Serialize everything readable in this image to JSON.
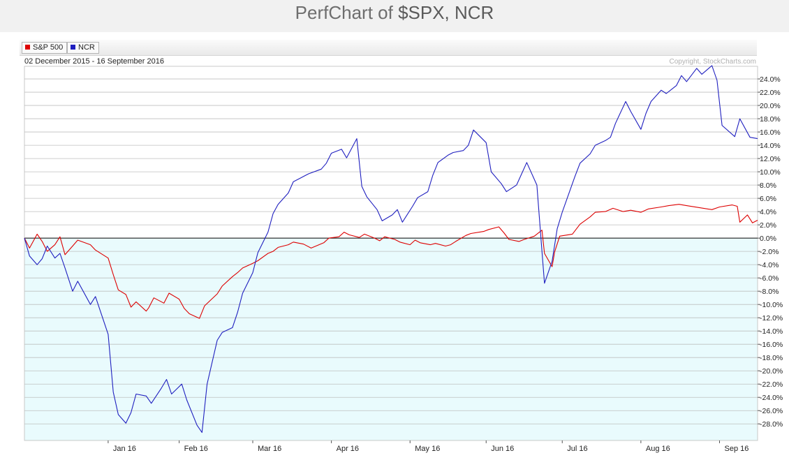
{
  "page": {
    "title_prefix": "PerfChart of ",
    "title_symbols": "$SPX, NCR"
  },
  "colors": {
    "spx": "#dd0000",
    "ncr": "#1f1fbf",
    "negative_fill": "#e9fbfd",
    "grid": "#bfbfbf"
  },
  "chart_data": {
    "type": "line",
    "date_range": "02 December 2015 - 16 September 2016",
    "copyright": "Copyright, StockCharts.com",
    "ylabel": "",
    "y_unit": "%",
    "ylim": [
      -30.5,
      25.9
    ],
    "y_ticks": [
      "24.0%",
      "22.0%",
      "20.0%",
      "18.0%",
      "16.0%",
      "14.0%",
      "12.0%",
      "10.0%",
      "8.0%",
      "6.0%",
      "4.0%",
      "2.0%",
      "0.0%",
      "-2.0%",
      "-4.0%",
      "-6.0%",
      "-8.0%",
      "-10.0%",
      "-12.0%",
      "-14.0%",
      "-16.0%",
      "-18.0%",
      "-20.0%",
      "-22.0%",
      "-24.0%",
      "-26.0%",
      "-28.0%"
    ],
    "x_ticks": [
      {
        "label": "Jan 16",
        "date": "2016-01-04"
      },
      {
        "label": "Feb 16",
        "date": "2016-02-01"
      },
      {
        "label": "Mar 16",
        "date": "2016-03-01"
      },
      {
        "label": "Apr 16",
        "date": "2016-04-01"
      },
      {
        "label": "May 16",
        "date": "2016-05-02"
      },
      {
        "label": "Jun 16",
        "date": "2016-06-01"
      },
      {
        "label": "Jul 16",
        "date": "2016-07-01"
      },
      {
        "label": "Aug 16",
        "date": "2016-08-01"
      },
      {
        "label": "Sep 16",
        "date": "2016-09-01"
      }
    ],
    "legend_position": "top-left",
    "grid": true,
    "series": [
      {
        "name": "S&P 500",
        "color": "#dd0000",
        "x": [
          "2015-12-02",
          "2015-12-04",
          "2015-12-07",
          "2015-12-09",
          "2015-12-11",
          "2015-12-14",
          "2015-12-16",
          "2015-12-18",
          "2015-12-21",
          "2015-12-23",
          "2015-12-28",
          "2015-12-30",
          "2016-01-04",
          "2016-01-06",
          "2016-01-08",
          "2016-01-11",
          "2016-01-13",
          "2016-01-15",
          "2016-01-19",
          "2016-01-20",
          "2016-01-22",
          "2016-01-26",
          "2016-01-28",
          "2016-02-01",
          "2016-02-03",
          "2016-02-05",
          "2016-02-09",
          "2016-02-11",
          "2016-02-16",
          "2016-02-18",
          "2016-02-22",
          "2016-02-24",
          "2016-02-26",
          "2016-03-01",
          "2016-03-03",
          "2016-03-07",
          "2016-03-09",
          "2016-03-11",
          "2016-03-15",
          "2016-03-17",
          "2016-03-21",
          "2016-03-24",
          "2016-03-29",
          "2016-03-31",
          "2016-04-04",
          "2016-04-06",
          "2016-04-08",
          "2016-04-12",
          "2016-04-14",
          "2016-04-18",
          "2016-04-20",
          "2016-04-22",
          "2016-04-26",
          "2016-04-28",
          "2016-05-02",
          "2016-05-04",
          "2016-05-06",
          "2016-05-10",
          "2016-05-12",
          "2016-05-16",
          "2016-05-18",
          "2016-05-20",
          "2016-05-24",
          "2016-05-26",
          "2016-05-31",
          "2016-06-02",
          "2016-06-06",
          "2016-06-08",
          "2016-06-10",
          "2016-06-14",
          "2016-06-16",
          "2016-06-20",
          "2016-06-23",
          "2016-06-24",
          "2016-06-27",
          "2016-06-28",
          "2016-06-30",
          "2016-07-05",
          "2016-07-08",
          "2016-07-12",
          "2016-07-14",
          "2016-07-18",
          "2016-07-21",
          "2016-07-25",
          "2016-07-28",
          "2016-08-01",
          "2016-08-04",
          "2016-08-09",
          "2016-08-12",
          "2016-08-16",
          "2016-08-19",
          "2016-08-24",
          "2016-08-29",
          "2016-09-01",
          "2016-09-06",
          "2016-09-08",
          "2016-09-09",
          "2016-09-12",
          "2016-09-14",
          "2016-09-16"
        ],
        "values": [
          0.0,
          -1.5,
          0.6,
          -0.5,
          -2.0,
          -1.0,
          0.2,
          -2.5,
          -1.2,
          -0.3,
          -1.0,
          -1.8,
          -3.0,
          -5.5,
          -7.8,
          -8.5,
          -10.4,
          -9.6,
          -11.0,
          -10.5,
          -9.0,
          -9.8,
          -8.3,
          -9.2,
          -10.6,
          -11.4,
          -12.1,
          -10.2,
          -8.4,
          -7.2,
          -5.8,
          -5.2,
          -4.5,
          -3.8,
          -3.4,
          -2.3,
          -2.0,
          -1.4,
          -1.0,
          -0.6,
          -0.9,
          -1.5,
          -0.7,
          0.0,
          0.2,
          0.9,
          0.5,
          0.1,
          0.6,
          0.0,
          -0.4,
          0.2,
          -0.2,
          -0.6,
          -1.0,
          -0.3,
          -0.7,
          -1.0,
          -0.8,
          -1.2,
          -1.0,
          -0.5,
          0.4,
          0.7,
          1.0,
          1.3,
          1.7,
          0.8,
          -0.2,
          -0.5,
          -0.2,
          0.3,
          1.2,
          -2.3,
          -4.3,
          -2.1,
          0.3,
          0.6,
          2.1,
          3.2,
          3.9,
          4.0,
          4.5,
          4.0,
          4.2,
          3.9,
          4.4,
          4.7,
          4.9,
          5.1,
          4.9,
          4.6,
          4.3,
          4.7,
          5.0,
          4.8,
          2.4,
          3.5,
          2.3,
          2.7
        ]
      },
      {
        "name": "NCR",
        "color": "#1f1fbf",
        "x": [
          "2015-12-02",
          "2015-12-04",
          "2015-12-07",
          "2015-12-09",
          "2015-12-11",
          "2015-12-14",
          "2015-12-16",
          "2015-12-18",
          "2015-12-21",
          "2015-12-23",
          "2015-12-28",
          "2015-12-30",
          "2016-01-04",
          "2016-01-06",
          "2016-01-08",
          "2016-01-11",
          "2016-01-13",
          "2016-01-15",
          "2016-01-19",
          "2016-01-21",
          "2016-01-25",
          "2016-01-27",
          "2016-01-29",
          "2016-02-02",
          "2016-02-04",
          "2016-02-08",
          "2016-02-10",
          "2016-02-12",
          "2016-02-16",
          "2016-02-18",
          "2016-02-22",
          "2016-02-24",
          "2016-02-26",
          "2016-03-01",
          "2016-03-03",
          "2016-03-07",
          "2016-03-09",
          "2016-03-11",
          "2016-03-15",
          "2016-03-17",
          "2016-03-21",
          "2016-03-23",
          "2016-03-28",
          "2016-03-30",
          "2016-04-01",
          "2016-04-05",
          "2016-04-07",
          "2016-04-11",
          "2016-04-13",
          "2016-04-15",
          "2016-04-19",
          "2016-04-21",
          "2016-04-25",
          "2016-04-27",
          "2016-04-29",
          "2016-05-03",
          "2016-05-05",
          "2016-05-09",
          "2016-05-11",
          "2016-05-13",
          "2016-05-17",
          "2016-05-19",
          "2016-05-23",
          "2016-05-25",
          "2016-05-27",
          "2016-06-01",
          "2016-06-03",
          "2016-06-07",
          "2016-06-09",
          "2016-06-13",
          "2016-06-15",
          "2016-06-17",
          "2016-06-21",
          "2016-06-23",
          "2016-06-24",
          "2016-06-27",
          "2016-06-29",
          "2016-07-01",
          "2016-07-06",
          "2016-07-08",
          "2016-07-12",
          "2016-07-14",
          "2016-07-18",
          "2016-07-20",
          "2016-07-22",
          "2016-07-26",
          "2016-07-28",
          "2016-08-01",
          "2016-08-03",
          "2016-08-05",
          "2016-08-09",
          "2016-08-11",
          "2016-08-15",
          "2016-08-17",
          "2016-08-19",
          "2016-08-23",
          "2016-08-25",
          "2016-08-29",
          "2016-08-31",
          "2016-09-02",
          "2016-09-07",
          "2016-09-09",
          "2016-09-13",
          "2016-09-16"
        ],
        "values": [
          0.0,
          -2.7,
          -4.0,
          -3.1,
          -1.2,
          -3.0,
          -2.3,
          -4.5,
          -8.0,
          -6.5,
          -10.0,
          -8.8,
          -14.5,
          -23.2,
          -26.6,
          -27.9,
          -26.3,
          -23.5,
          -23.8,
          -24.9,
          -22.6,
          -21.3,
          -23.5,
          -22.0,
          -24.4,
          -28.2,
          -29.3,
          -22.0,
          -15.4,
          -14.2,
          -13.5,
          -11.2,
          -8.3,
          -5.2,
          -2.2,
          0.9,
          3.7,
          5.1,
          6.8,
          8.5,
          9.3,
          9.7,
          10.4,
          11.3,
          12.8,
          13.4,
          12.1,
          15.0,
          7.8,
          6.2,
          4.3,
          2.6,
          3.5,
          4.3,
          2.4,
          4.8,
          6.1,
          7.0,
          9.5,
          11.4,
          12.5,
          12.9,
          13.2,
          14.0,
          16.3,
          14.4,
          10.0,
          8.2,
          7.0,
          8.0,
          9.7,
          11.4,
          8.0,
          -2.0,
          -6.8,
          -3.5,
          1.4,
          3.9,
          9.3,
          11.3,
          12.7,
          14.0,
          14.7,
          15.2,
          17.3,
          20.6,
          19.1,
          16.4,
          18.8,
          20.6,
          22.3,
          21.8,
          23.0,
          24.5,
          23.6,
          25.6,
          24.7,
          26.0,
          23.8,
          17.0,
          15.3,
          18.0,
          15.2,
          15.0
        ]
      }
    ]
  }
}
